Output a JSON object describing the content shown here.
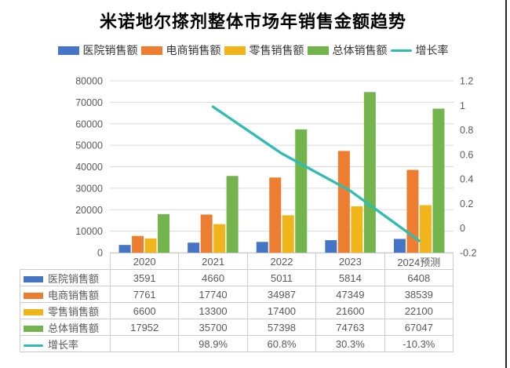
{
  "title": "米诺地尔搽剂整体市场年销售金额趋势",
  "window": {
    "right_edge_color": "#262626"
  },
  "chart_data": {
    "type": "bar",
    "title": "米诺地尔搽剂整体市场年销售金额趋势",
    "categories": [
      "2020",
      "2021",
      "2022",
      "2023",
      "2024预测"
    ],
    "series": [
      {
        "name": "医院销售额",
        "chart_type": "bar",
        "axis": "left",
        "color": "#4675C6",
        "values": [
          3591,
          4660,
          5011,
          5814,
          6408
        ]
      },
      {
        "name": "电商销售额",
        "chart_type": "bar",
        "axis": "left",
        "color": "#ED7D31",
        "values": [
          7761,
          17740,
          34987,
          47349,
          38539
        ]
      },
      {
        "name": "零售销售额",
        "chart_type": "bar",
        "axis": "left",
        "color": "#F1B51C",
        "values": [
          6600,
          13300,
          17400,
          21600,
          22100
        ]
      },
      {
        "name": "总体销售额",
        "chart_type": "bar",
        "axis": "left",
        "color": "#73B44C",
        "values": [
          17952,
          35700,
          57398,
          74763,
          67047
        ]
      },
      {
        "name": "增长率",
        "chart_type": "line",
        "axis": "right",
        "color": "#30BCB0",
        "values": [
          null,
          0.989,
          0.608,
          0.303,
          -0.103
        ]
      }
    ],
    "left_axis": {
      "min": 0,
      "max": 80000,
      "step": 10000,
      "ticks": [
        "0",
        "10000",
        "20000",
        "30000",
        "40000",
        "50000",
        "60000",
        "70000",
        "80000"
      ]
    },
    "right_axis": {
      "min": -0.2,
      "max": 1.2,
      "step": 0.2,
      "ticks": [
        "-0.2",
        "0",
        "0.2",
        "0.4",
        "0.6",
        "0.8",
        "1",
        "1.2"
      ]
    },
    "grid": true,
    "gridline_color": "#DADADA",
    "tick_label_color": "#595959",
    "legend_position": "top"
  },
  "table": {
    "rows": [
      {
        "label": "医院销售额",
        "values": [
          "3591",
          "4660",
          "5011",
          "5814",
          "6408"
        ]
      },
      {
        "label": "电商销售额",
        "values": [
          "7761",
          "17740",
          "34987",
          "47349",
          "38539"
        ]
      },
      {
        "label": "零售销售额",
        "values": [
          "6600",
          "13300",
          "17400",
          "21600",
          "22100"
        ]
      },
      {
        "label": "总体销售额",
        "values": [
          "17952",
          "35700",
          "57398",
          "74763",
          "67047"
        ]
      },
      {
        "label": "增长率",
        "values": [
          "",
          "98.9%",
          "60.8%",
          "30.3%",
          "-10.3%"
        ]
      }
    ]
  }
}
